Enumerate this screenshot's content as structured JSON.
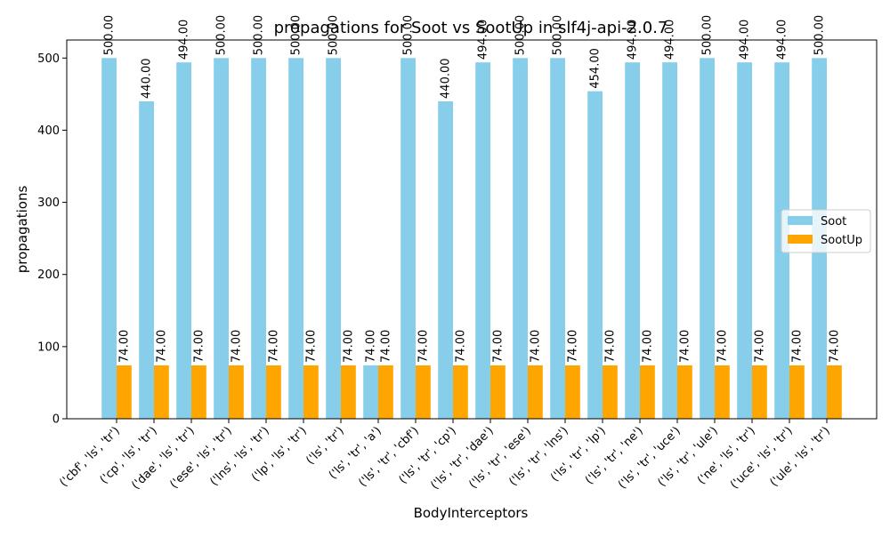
{
  "chart_data": {
    "type": "bar",
    "title": "propagations for Soot vs SootUp in slf4j-api-2.0.7",
    "xlabel": "BodyInterceptors",
    "ylabel": "propagations",
    "ylim": [
      0,
      525
    ],
    "yticks": [
      0,
      100,
      200,
      300,
      400,
      500
    ],
    "grid": false,
    "legend_position": "center-right",
    "categories": [
      "('cbf', 'ls', 'tr')",
      "('cp', 'ls', 'tr')",
      "('dae', 'ls', 'tr')",
      "('ese', 'ls', 'tr')",
      "('lns', 'ls', 'tr')",
      "('lp', 'ls', 'tr')",
      "('ls', 'tr')",
      "('ls', 'tr', 'a')",
      "('ls', 'tr', 'cbf')",
      "('ls', 'tr', 'cp')",
      "('ls', 'tr', 'dae')",
      "('ls', 'tr', 'ese')",
      "('ls', 'tr', 'lns')",
      "('ls', 'tr', 'lp')",
      "('ls', 'tr', 'ne')",
      "('ls', 'tr', 'uce')",
      "('ls', 'tr', 'ule')",
      "('ne', 'ls', 'tr')",
      "('uce', 'ls', 'tr')",
      "('ule', 'ls', 'tr')"
    ],
    "series": [
      {
        "name": "Soot",
        "color": "#87CEEB",
        "values": [
          500,
          440,
          494,
          500,
          500,
          500,
          500,
          74,
          500,
          440,
          494,
          500,
          500,
          454,
          494,
          494,
          500,
          494,
          494,
          500
        ],
        "labels": [
          "500.00",
          "440.00",
          "494.00",
          "500.00",
          "500.00",
          "500.00",
          "500.00",
          "74.00",
          "500.00",
          "440.00",
          "494.00",
          "500.00",
          "500.00",
          "454.00",
          "494.00",
          "494.00",
          "500.00",
          "494.00",
          "494.00",
          "500.00"
        ]
      },
      {
        "name": "SootUp",
        "color": "#FFA500",
        "values": [
          74,
          74,
          74,
          74,
          74,
          74,
          74,
          74,
          74,
          74,
          74,
          74,
          74,
          74,
          74,
          74,
          74,
          74,
          74,
          74
        ],
        "labels": [
          "74.00",
          "74.00",
          "74.00",
          "74.00",
          "74.00",
          "74.00",
          "74.00",
          "74.00",
          "74.00",
          "74.00",
          "74.00",
          "74.00",
          "74.00",
          "74.00",
          "74.00",
          "74.00",
          "74.00",
          "74.00",
          "74.00",
          "74.00"
        ]
      }
    ]
  }
}
